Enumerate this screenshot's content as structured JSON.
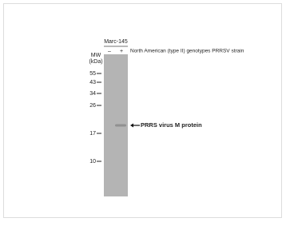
{
  "header": {
    "cell_line": "Marc-145",
    "lanes": [
      "–",
      "+"
    ],
    "condition": "North American (type II) genotypes PRRSV strain"
  },
  "mw_axis": {
    "title": "MW",
    "unit": "(kDa)",
    "markers": [
      55,
      43,
      34,
      26,
      17,
      10
    ]
  },
  "annotation": {
    "label": "PRRS virus M protein"
  }
}
